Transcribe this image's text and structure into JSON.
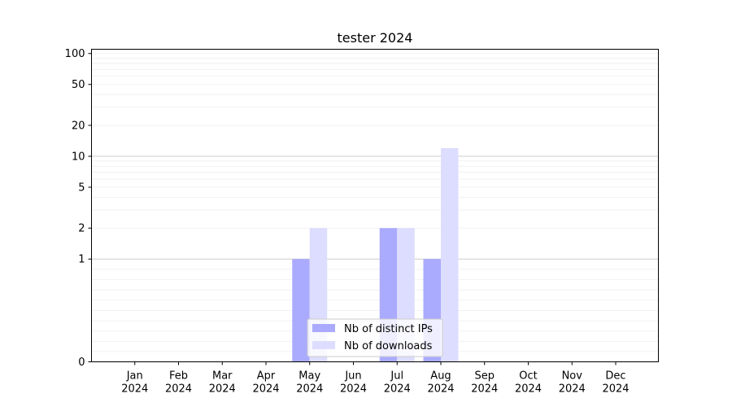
{
  "chart_data": {
    "type": "bar",
    "title": "tester 2024",
    "xlabel": "",
    "ylabel": "",
    "yscale": "symlog",
    "ylim": [
      0,
      110
    ],
    "y_ticks": [
      0,
      1,
      2,
      5,
      10,
      20,
      50,
      100
    ],
    "y_tick_labels": [
      "0",
      "1",
      "2",
      "5",
      "10",
      "20",
      "50",
      "100"
    ],
    "categories": [
      {
        "month": "Jan",
        "year": "2024"
      },
      {
        "month": "Feb",
        "year": "2024"
      },
      {
        "month": "Mar",
        "year": "2024"
      },
      {
        "month": "Apr",
        "year": "2024"
      },
      {
        "month": "May",
        "year": "2024"
      },
      {
        "month": "Jun",
        "year": "2024"
      },
      {
        "month": "Jul",
        "year": "2024"
      },
      {
        "month": "Aug",
        "year": "2024"
      },
      {
        "month": "Sep",
        "year": "2024"
      },
      {
        "month": "Oct",
        "year": "2024"
      },
      {
        "month": "Nov",
        "year": "2024"
      },
      {
        "month": "Dec",
        "year": "2024"
      }
    ],
    "series": [
      {
        "name": "Nb of distinct IPs",
        "color": "#aaaaff",
        "values": [
          0,
          0,
          0,
          0,
          1,
          0,
          2,
          1,
          0,
          0,
          0,
          0
        ]
      },
      {
        "name": "Nb of downloads",
        "color": "#ddddff",
        "values": [
          0,
          0,
          0,
          0,
          2,
          0,
          2,
          12,
          0,
          0,
          0,
          0
        ]
      }
    ],
    "grid": "major and minor horizontal",
    "legend_position": "bottom-center"
  }
}
